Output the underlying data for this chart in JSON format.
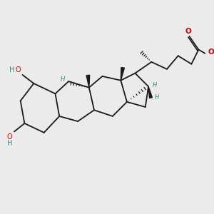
{
  "bg": "#ebebeb",
  "bc": "#1a1a1a",
  "oc": "#cc0000",
  "sc": "#2e8b8b",
  "lw": 1.3,
  "fig": [
    3.0,
    3.0
  ],
  "dpi": 100,
  "xlim": [
    0.0,
    10.0
  ],
  "ylim": [
    0.0,
    8.5
  ]
}
